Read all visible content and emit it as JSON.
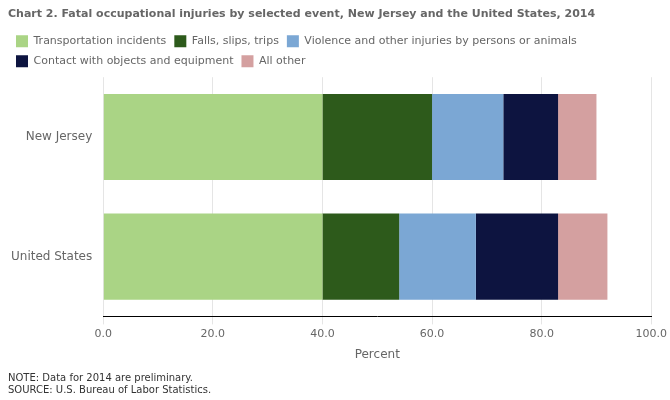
{
  "chart_data": {
    "type": "bar",
    "orientation": "horizontal",
    "stacked": true,
    "title": "Chart 2. Fatal occupational injuries by selected event, New Jersey and the United States, 2014",
    "categories": [
      "New Jersey",
      "United States"
    ],
    "series": [
      {
        "name": "Transportation incidents",
        "color": "#aad485",
        "values": [
          40.0,
          40.0
        ]
      },
      {
        "name": "Falls, slips, trips",
        "color": "#2d5a1b",
        "values": [
          20.0,
          14.0
        ]
      },
      {
        "name": "Violence and other injuries by persons or animals",
        "color": "#7ba7d4",
        "values": [
          13.0,
          14.0
        ]
      },
      {
        "name": "Contact with objects and equipment",
        "color": "#0d1440",
        "values": [
          10.0,
          15.0
        ]
      },
      {
        "name": "All other",
        "color": "#d4a0a0",
        "values": [
          7.0,
          9.0
        ]
      }
    ],
    "xlabel": "Percent",
    "xlim": [
      0,
      100
    ],
    "xticks": [
      {
        "value": 0,
        "label": "0.0"
      },
      {
        "value": 20,
        "label": "20.0"
      },
      {
        "value": 40,
        "label": "40.0"
      },
      {
        "value": 60,
        "label": "60.0"
      },
      {
        "value": 80,
        "label": "80.0"
      },
      {
        "value": 100,
        "label": "100.0"
      }
    ],
    "grid": true,
    "legend": "top",
    "annotations": [
      "NOTE: Data for 2014 are preliminary.",
      "SOURCE: U.S. Bureau of Labor Statistics."
    ]
  }
}
